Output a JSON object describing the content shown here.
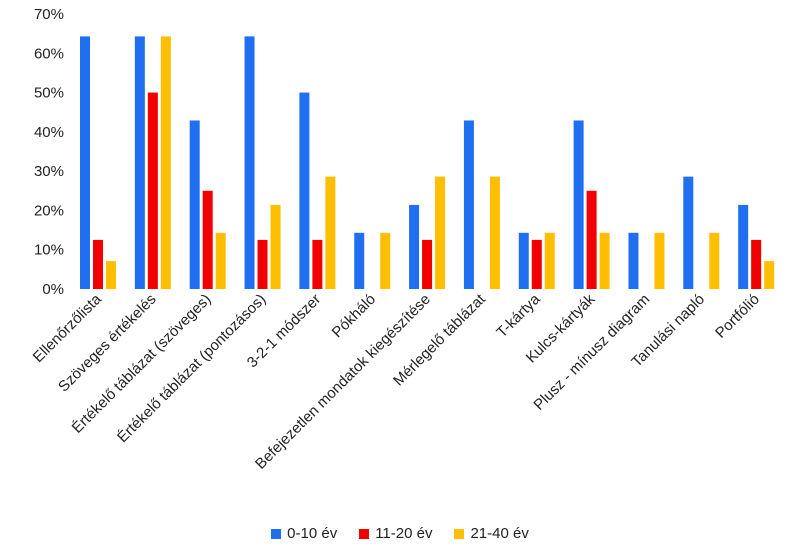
{
  "chart_data": {
    "type": "bar",
    "categories": [
      "Ellenőrzőlista",
      "Szöveges értékelés",
      "Értékelő táblázat (szöveges)",
      "Értékelő táblázat (pontozásos)",
      "3-2-1 módszer",
      "Pókháló",
      "Befejezetlen mondatok kiegészítése",
      "Mérlegelő táblázat",
      "T-kártya",
      "Kulcs-kártyák",
      "Plusz - mínusz diagram",
      "Tanulási napló",
      "Portfólió"
    ],
    "series": [
      {
        "name": "0-10 év",
        "color": "#1f6ff0",
        "values": [
          64.3,
          64.3,
          42.9,
          64.3,
          50.0,
          14.3,
          21.4,
          42.9,
          14.3,
          42.9,
          14.3,
          28.6,
          21.4
        ]
      },
      {
        "name": "11-20 év",
        "color": "#f20000",
        "values": [
          12.5,
          50.0,
          25.0,
          12.5,
          12.5,
          0,
          12.5,
          0,
          12.5,
          25.0,
          0,
          0,
          12.5
        ]
      },
      {
        "name": "21-40 év",
        "color": "#ffbf00",
        "values": [
          7.1,
          64.3,
          14.3,
          21.4,
          28.6,
          14.3,
          28.6,
          28.6,
          14.3,
          14.3,
          14.3,
          14.3,
          7.1
        ]
      }
    ],
    "yticks": [
      "0%",
      "10%",
      "20%",
      "30%",
      "40%",
      "50%",
      "60%",
      "70%"
    ],
    "ylim": [
      0,
      70
    ],
    "grid": false,
    "legend_position": "bottom"
  }
}
